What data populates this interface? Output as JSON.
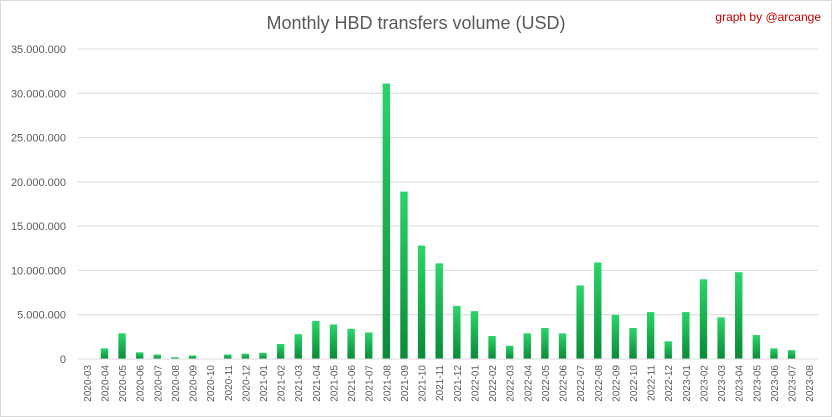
{
  "chart_data": {
    "type": "bar",
    "title": "Monthly HBD transfers volume (USD)",
    "credit": "graph by @arcange",
    "xlabel": "",
    "ylabel": "",
    "ylim": [
      0,
      35000000
    ],
    "grid": true,
    "legend": "none",
    "bar_color_light": "#2bd46a",
    "bar_color_dark": "#0a8a38",
    "y_ticks": [
      {
        "value": 0,
        "label": "0"
      },
      {
        "value": 5000000,
        "label": "5.000.000"
      },
      {
        "value": 10000000,
        "label": "10.000.000"
      },
      {
        "value": 15000000,
        "label": "15.000.000"
      },
      {
        "value": 20000000,
        "label": "20.000.000"
      },
      {
        "value": 25000000,
        "label": "25.000.000"
      },
      {
        "value": 30000000,
        "label": "30.000.000"
      },
      {
        "value": 35000000,
        "label": "35.000.000"
      }
    ],
    "categories": [
      "2020-03",
      "2020-04",
      "2020-05",
      "2020-06",
      "2020-07",
      "2020-08",
      "2020-09",
      "2020-10",
      "2020-11",
      "2020-12",
      "2021-01",
      "2021-02",
      "2021-03",
      "2021-04",
      "2021-05",
      "2021-06",
      "2021-07",
      "2021-08",
      "2021-09",
      "2021-10",
      "2021-11",
      "2021-12",
      "2022-01",
      "2022-02",
      "2022-03",
      "2022-04",
      "2022-05",
      "2022-06",
      "2022-07",
      "2022-08",
      "2022-09",
      "2022-10",
      "2022-11",
      "2022-12",
      "2023-01",
      "2023-02",
      "2023-03",
      "2023-04",
      "2023-05",
      "2023-06",
      "2023-07",
      "2023-08"
    ],
    "values": [
      0,
      1200000,
      2900000,
      750000,
      500000,
      200000,
      400000,
      0,
      500000,
      600000,
      700000,
      1700000,
      2800000,
      4300000,
      3900000,
      3400000,
      3000000,
      31100000,
      18900000,
      12800000,
      10800000,
      6000000,
      5400000,
      2600000,
      1500000,
      2900000,
      3500000,
      2900000,
      8300000,
      10900000,
      5000000,
      3500000,
      5300000,
      2000000,
      5300000,
      9000000,
      4700000,
      9800000,
      2700000,
      1200000,
      1000000,
      0
    ]
  }
}
